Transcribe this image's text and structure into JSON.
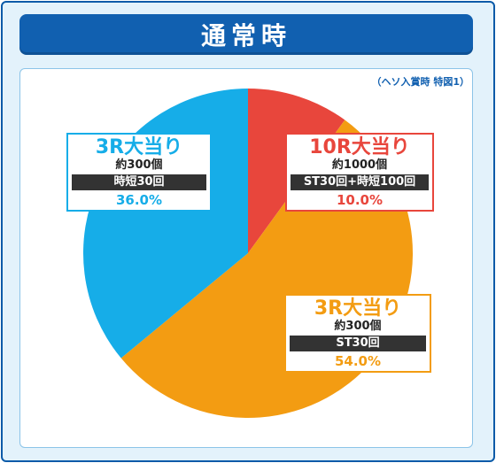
{
  "header": {
    "title": "通常時"
  },
  "note": "（ヘソ入賞時 特図1）",
  "chart_data": {
    "type": "pie",
    "slices": [
      {
        "label": "10R大当り",
        "sub": "約1000個",
        "tag": "ST30回+時短100回",
        "value": 10.0,
        "pct_label": "10.0%",
        "color": "#e8463c"
      },
      {
        "label": "3R大当り",
        "sub": "約300個",
        "tag": "ST30回",
        "value": 54.0,
        "pct_label": "54.0%",
        "color": "#f39c12"
      },
      {
        "label": "3R大当り",
        "sub": "約300個",
        "tag": "時短30回",
        "value": 36.0,
        "pct_label": "36.0%",
        "color": "#16ade8"
      }
    ]
  }
}
